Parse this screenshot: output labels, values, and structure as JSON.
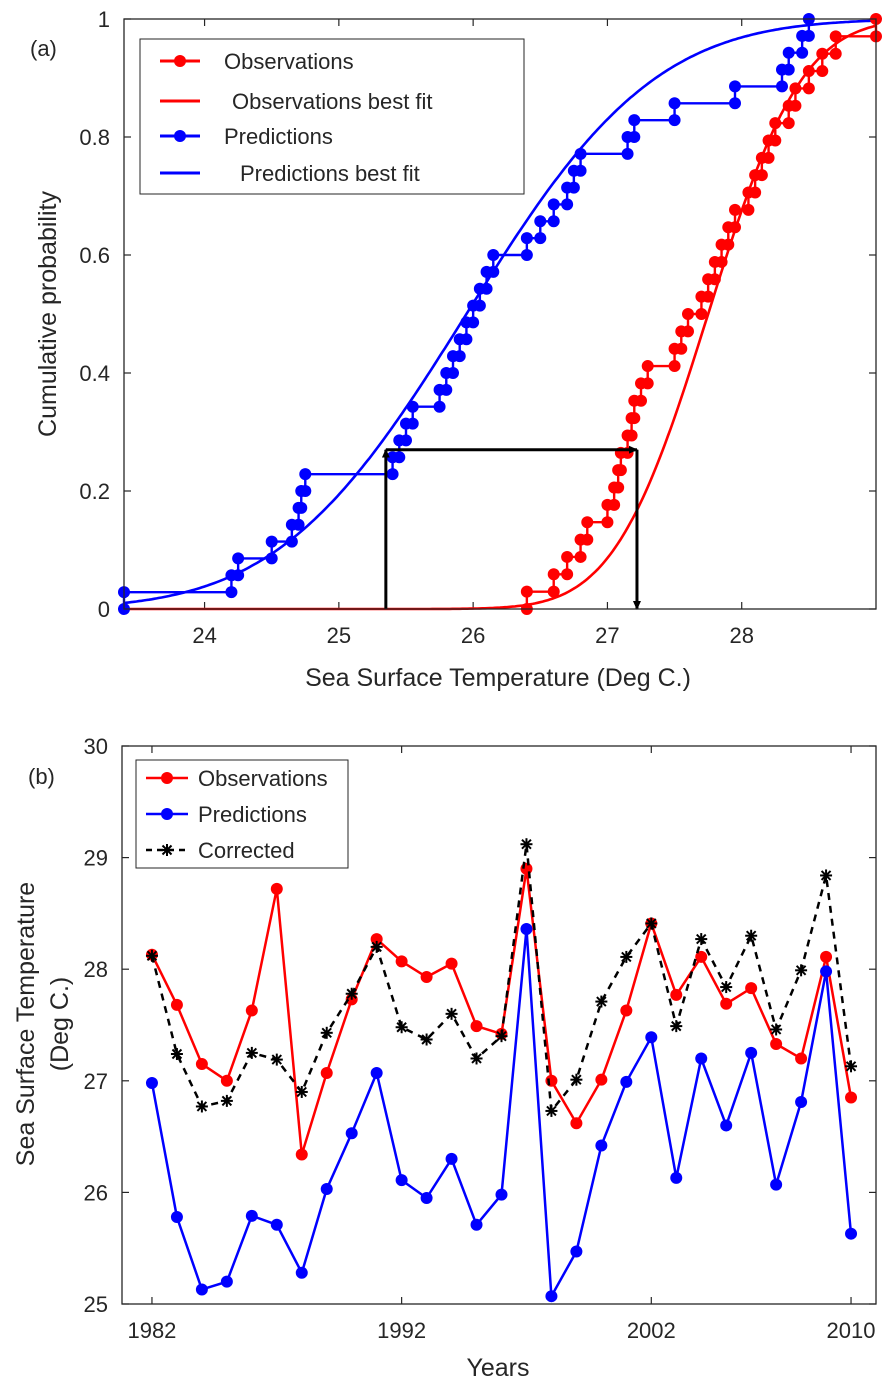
{
  "chart_data": [
    {
      "panel": "(a)",
      "type": "line",
      "subtype": "empirical-cdf-with-fit",
      "xlabel": "Sea Surface Temperature (Deg C.)",
      "ylabel": "Cumulative probability",
      "xlim": [
        23.4,
        29.0
      ],
      "ylim": [
        0,
        1
      ],
      "xticks": [
        24,
        25,
        26,
        27,
        28
      ],
      "yticks": [
        0,
        0.2,
        0.4,
        0.6,
        0.8,
        1
      ],
      "xtick_labels": [
        "24",
        "25",
        "26",
        "27",
        "28"
      ],
      "ytick_labels": [
        "0",
        "0.2",
        "0.4",
        "0.6",
        "0.8",
        "1"
      ],
      "legend_position": "top-left",
      "series": [
        {
          "name": "Observations",
          "kind": "ecdf-stairs",
          "color": "#ff0000",
          "values": [
            26.4,
            26.6,
            26.7,
            26.8,
            26.85,
            27.0,
            27.05,
            27.08,
            27.1,
            27.15,
            27.18,
            27.2,
            27.25,
            27.3,
            27.5,
            27.55,
            27.6,
            27.7,
            27.75,
            27.8,
            27.85,
            27.9,
            27.95,
            28.05,
            28.1,
            28.15,
            28.2,
            28.25,
            28.35,
            28.4,
            28.5,
            28.6,
            28.7,
            29.0
          ]
        },
        {
          "name": "Observations best fit",
          "kind": "normal-cdf",
          "color": "#ff0000",
          "mean": 27.75,
          "std": 0.55
        },
        {
          "name": "Predictions",
          "kind": "ecdf-stairs",
          "color": "#0000ff",
          "values": [
            23.4,
            24.2,
            24.25,
            24.5,
            24.65,
            24.7,
            24.72,
            24.75,
            25.4,
            25.45,
            25.5,
            25.55,
            25.75,
            25.8,
            25.85,
            25.9,
            25.95,
            26.0,
            26.05,
            26.1,
            26.15,
            26.4,
            26.5,
            26.6,
            26.7,
            26.75,
            26.8,
            27.15,
            27.2,
            27.5,
            27.95,
            28.3,
            28.35,
            28.45,
            28.5
          ]
        },
        {
          "name": "Predictions best fit",
          "kind": "normal-cdf",
          "color": "#0000ff",
          "mean": 25.95,
          "std": 1.1
        }
      ],
      "annotations": [
        {
          "type": "arrow",
          "from": [
            25.35,
            0.0
          ],
          "to": [
            25.35,
            0.27
          ]
        },
        {
          "type": "arrow",
          "from": [
            25.35,
            0.27
          ],
          "to": [
            27.22,
            0.27
          ]
        },
        {
          "type": "arrow",
          "from": [
            27.22,
            0.27
          ],
          "to": [
            27.22,
            0.0
          ]
        }
      ]
    },
    {
      "panel": "(b)",
      "type": "line",
      "xlabel": "Years",
      "ylabel": "Sea Surface Temperature (Deg C.)",
      "xlim": [
        1980.8,
        2011.0
      ],
      "ylim": [
        25,
        30
      ],
      "xticks": [
        1982,
        1992,
        2002,
        2010
      ],
      "yticks": [
        25,
        26,
        27,
        28,
        29,
        30
      ],
      "xtick_labels": [
        "1982",
        "1992",
        "2002",
        "2010"
      ],
      "ytick_labels": [
        "25",
        "26",
        "27",
        "28",
        "29",
        "30"
      ],
      "legend_position": "top-left",
      "x": [
        1982,
        1983,
        1984,
        1985,
        1986,
        1987,
        1988,
        1989,
        1990,
        1991,
        1992,
        1993,
        1994,
        1995,
        1996,
        1997,
        1998,
        1999,
        2000,
        2001,
        2002,
        2003,
        2004,
        2005,
        2006,
        2007,
        2008,
        2009,
        2010
      ],
      "series": [
        {
          "name": "Observations",
          "color": "#ff0000",
          "style": "solid",
          "marker": "circle",
          "values": [
            28.13,
            27.68,
            27.15,
            27.0,
            27.63,
            28.72,
            26.34,
            27.07,
            27.73,
            28.27,
            28.07,
            27.93,
            28.05,
            27.49,
            27.42,
            28.9,
            27.0,
            26.62,
            27.01,
            27.63,
            28.41,
            27.77,
            28.11,
            27.69,
            27.83,
            27.33,
            27.2,
            28.11,
            26.85
          ]
        },
        {
          "name": "Predictions",
          "color": "#0000ff",
          "style": "solid",
          "marker": "circle",
          "values": [
            26.98,
            25.78,
            25.13,
            25.2,
            25.79,
            25.71,
            25.28,
            26.03,
            26.53,
            27.07,
            26.11,
            25.95,
            26.3,
            25.71,
            25.98,
            28.36,
            25.07,
            25.47,
            26.42,
            26.99,
            27.39,
            26.13,
            27.2,
            26.6,
            27.25,
            26.07,
            26.81,
            27.98,
            25.63
          ]
        },
        {
          "name": "Corrected",
          "color": "#000000",
          "style": "dashed",
          "marker": "asterisk",
          "values": [
            28.12,
            27.24,
            26.77,
            26.82,
            27.25,
            27.19,
            26.9,
            27.43,
            27.78,
            28.2,
            27.48,
            27.37,
            27.6,
            27.2,
            27.4,
            29.12,
            26.73,
            27.01,
            27.71,
            28.11,
            28.41,
            27.49,
            28.27,
            27.84,
            28.3,
            27.46,
            27.99,
            28.84,
            27.13
          ]
        }
      ]
    }
  ]
}
